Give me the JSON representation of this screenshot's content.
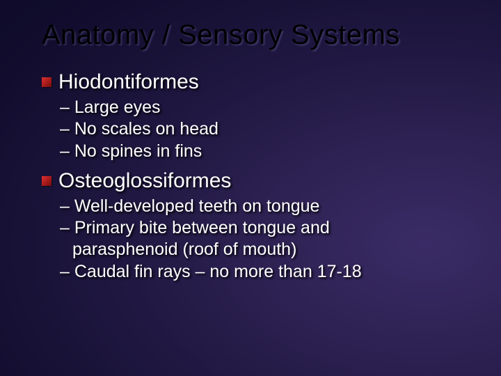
{
  "slide": {
    "title": "Anatomy / Sensory Systems",
    "title_color": "#000000",
    "title_fontsize": 40,
    "body_color": "#ffffff",
    "body_shadow": "#000000",
    "bullet_color": "#b81f1f",
    "background_gradient": {
      "type": "radial",
      "center": "85% 65%",
      "stops": [
        "#3a2b66",
        "#2f2355",
        "#1f1740",
        "#120d2e",
        "#0a0620"
      ]
    },
    "section_fontsize": 30,
    "subitem_fontsize": 25,
    "sections": [
      {
        "heading": "Hiodontiformes",
        "items": [
          {
            "text": "Large eyes"
          },
          {
            "text": "No scales on head"
          },
          {
            "text": "No spines in fins"
          }
        ]
      },
      {
        "heading": "Osteoglossiformes",
        "items": [
          {
            "text": "Well-developed teeth on tongue"
          },
          {
            "text": "Primary bite between tongue and",
            "cont": "parasphenoid (roof of mouth)"
          },
          {
            "text": "Caudal fin rays – no more than 17-18"
          }
        ]
      }
    ]
  }
}
